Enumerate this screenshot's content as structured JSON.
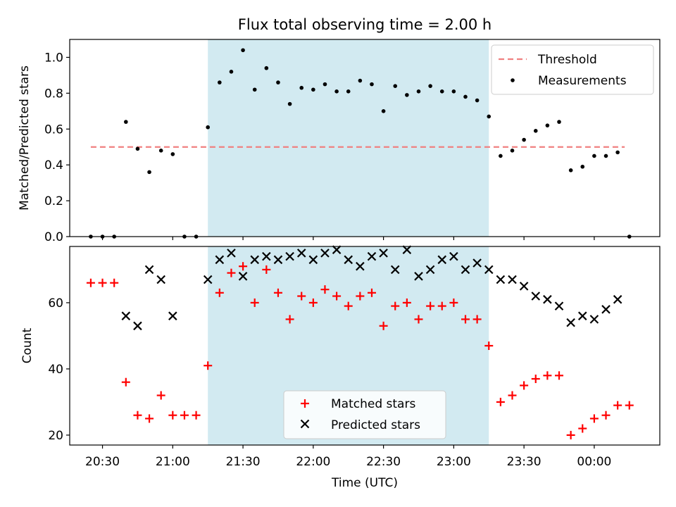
{
  "chart_data": {
    "type": "scatter",
    "title": "Flux total observing time = 2.00 h",
    "shaded_interval": {
      "start": "21:15",
      "end": "23:15",
      "color": "#add8e6"
    },
    "x_ticks": [
      "20:30",
      "21:00",
      "21:30",
      "22:00",
      "22:30",
      "23:00",
      "23:30",
      "00:00"
    ],
    "xlabel": "Time (UTC)",
    "top_panel": {
      "ylabel": "Matched/Predicted stars",
      "ylim": [
        0,
        1.1
      ],
      "y_ticks": [
        "0.0",
        "0.2",
        "0.4",
        "0.6",
        "0.8",
        "1.0"
      ],
      "legend_placement": "upper right",
      "threshold": {
        "name": "Threshold",
        "value": 0.5,
        "start": "20:25",
        "end": "00:13",
        "color": "#f08080"
      },
      "series": [
        {
          "name": "Measurements",
          "color": "#000000",
          "x": [
            "20:25",
            "20:30",
            "20:35",
            "20:40",
            "20:45",
            "20:50",
            "20:55",
            "21:00",
            "21:05",
            "21:10",
            "21:15",
            "21:20",
            "21:25",
            "21:30",
            "21:35",
            "21:40",
            "21:45",
            "21:50",
            "21:55",
            "22:00",
            "22:05",
            "22:10",
            "22:15",
            "22:20",
            "22:25",
            "22:30",
            "22:35",
            "22:40",
            "22:45",
            "22:50",
            "22:55",
            "23:00",
            "23:05",
            "23:10",
            "23:15",
            "23:20",
            "23:25",
            "23:30",
            "23:35",
            "23:40",
            "23:45",
            "23:50",
            "23:55",
            "00:00",
            "00:05",
            "00:10",
            "00:15"
          ],
          "y": [
            0,
            0,
            0,
            0.64,
            0.49,
            0.36,
            0.48,
            0.46,
            0,
            0,
            0.61,
            0.86,
            0.92,
            1.04,
            0.82,
            0.94,
            0.86,
            0.74,
            0.83,
            0.82,
            0.85,
            0.81,
            0.81,
            0.87,
            0.85,
            0.7,
            0.84,
            0.79,
            0.81,
            0.84,
            0.81,
            0.81,
            0.78,
            0.76,
            0.67,
            0.45,
            0.48,
            0.54,
            0.59,
            0.62,
            0.64,
            0.37,
            0.39,
            0.45,
            0.45,
            0.47,
            0
          ]
        }
      ]
    },
    "bottom_panel": {
      "ylabel": "Count",
      "ylim": [
        17,
        77
      ],
      "y_ticks": [
        "20",
        "40",
        "60"
      ],
      "legend_placement": "lower center",
      "series": [
        {
          "name": "Matched stars",
          "marker": "+",
          "color": "#ff0000",
          "x": [
            "20:25",
            "20:30",
            "20:35",
            "20:40",
            "20:45",
            "20:50",
            "20:55",
            "21:00",
            "21:05",
            "21:10",
            "21:15",
            "21:20",
            "21:25",
            "21:30",
            "21:35",
            "21:40",
            "21:45",
            "21:50",
            "21:55",
            "22:00",
            "22:05",
            "22:10",
            "22:15",
            "22:20",
            "22:25",
            "22:30",
            "22:35",
            "22:40",
            "22:45",
            "22:50",
            "22:55",
            "23:00",
            "23:05",
            "23:10",
            "23:15",
            "23:20",
            "23:25",
            "23:30",
            "23:35",
            "23:40",
            "23:45",
            "23:50",
            "23:55",
            "00:00",
            "00:05",
            "00:10",
            "00:15"
          ],
          "y": [
            66,
            66,
            66,
            36,
            26,
            25,
            32,
            26,
            26,
            26,
            41,
            63,
            69,
            71,
            60,
            70,
            63,
            55,
            62,
            60,
            64,
            62,
            59,
            62,
            63,
            53,
            59,
            60,
            55,
            59,
            59,
            60,
            55,
            55,
            47,
            30,
            32,
            35,
            37,
            38,
            38,
            20,
            22,
            25,
            26,
            29,
            29
          ]
        },
        {
          "name": "Predicted stars",
          "marker": "x",
          "color": "#000000",
          "x": [
            "20:40",
            "20:45",
            "20:50",
            "20:55",
            "21:00",
            "21:15",
            "21:20",
            "21:25",
            "21:30",
            "21:35",
            "21:40",
            "21:45",
            "21:50",
            "21:55",
            "22:00",
            "22:05",
            "22:10",
            "22:15",
            "22:20",
            "22:25",
            "22:30",
            "22:35",
            "22:40",
            "22:45",
            "22:50",
            "22:55",
            "23:00",
            "23:05",
            "23:10",
            "23:15",
            "23:20",
            "23:25",
            "23:30",
            "23:35",
            "23:40",
            "23:45",
            "23:50",
            "23:55",
            "00:00",
            "00:05",
            "00:10"
          ],
          "y": [
            56,
            53,
            70,
            67,
            56,
            67,
            73,
            75,
            68,
            73,
            74,
            73,
            74,
            75,
            73,
            75,
            76,
            73,
            71,
            74,
            75,
            70,
            76,
            68,
            70,
            73,
            74,
            70,
            72,
            70,
            67,
            67,
            65,
            62,
            61,
            59,
            54,
            56,
            55,
            58,
            61
          ]
        }
      ]
    }
  }
}
